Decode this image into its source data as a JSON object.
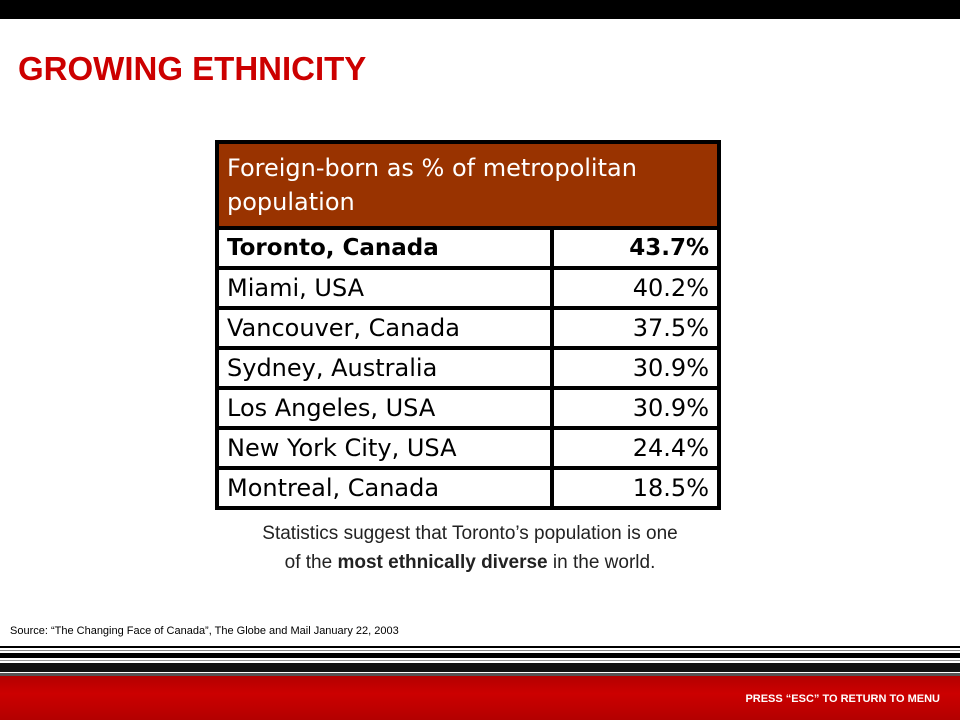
{
  "slide": {
    "title": "GROWING ETHNICITY"
  },
  "table": {
    "header": "Foreign-born as % of metropolitan population",
    "rows": [
      {
        "city": "Toronto, Canada",
        "value": "43.7%"
      },
      {
        "city": "Miami, USA",
        "value": "40.2%"
      },
      {
        "city": "Vancouver, Canada",
        "value": "37.5%"
      },
      {
        "city": "Sydney, Australia",
        "value": "30.9%"
      },
      {
        "city": "Los Angeles, USA",
        "value": "30.9%"
      },
      {
        "city": "New York City, USA",
        "value": "24.4%"
      },
      {
        "city": "Montreal, Canada",
        "value": "18.5%"
      }
    ]
  },
  "caption": {
    "line1": "Statistics suggest that Toronto’s population is one",
    "line2_prefix": "of the ",
    "line2_bold": "most ethnically diverse",
    "line2_suffix": " in the world."
  },
  "source": "Source: “The Changing Face of Canada”, The Globe and Mail  January 22, 2003",
  "footer": {
    "hint": "PRESS “ESC” TO RETURN TO MENU"
  },
  "colors": {
    "title": "#cc0000",
    "table_header": "#993300",
    "footer_bar": "#c00000"
  }
}
